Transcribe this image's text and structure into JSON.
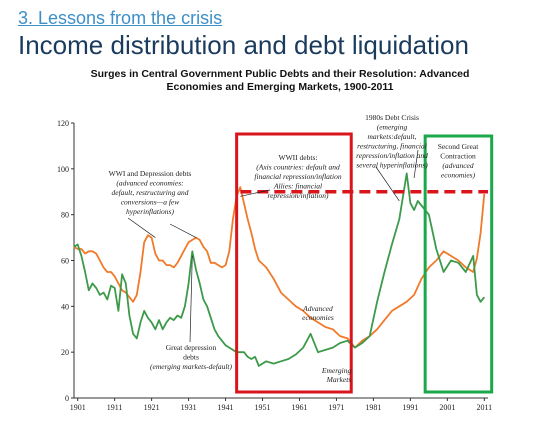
{
  "slide": {
    "section_link": "3. Lessons from the crisis",
    "headline": "Income distribution and debt liquidation"
  },
  "colors": {
    "advanced": "#f07a2a",
    "emerging": "#3c9a4a",
    "highlight_red": "#d9141b",
    "highlight_green": "#1aa84a",
    "section_link": "#3c8fc8",
    "headline": "#1b3b5e"
  },
  "chart_data": {
    "type": "line",
    "title": "Surges in Central Government Public Debts and their Resolution: Advanced Economies and Emerging Markets, 1900-2011",
    "title_line1": "Surges in Central Government Public Debts and their Resolution: Advanced",
    "title_line2": "Economies and Emerging Markets, 1900-2011",
    "xlabel": "",
    "ylabel": "",
    "xlim": [
      1900,
      2012
    ],
    "ylim": [
      0,
      120
    ],
    "x_ticks": [
      1901,
      1911,
      1921,
      1931,
      1941,
      1951,
      1961,
      1971,
      1981,
      1991,
      2001,
      2011
    ],
    "y_ticks": [
      0,
      20,
      40,
      60,
      80,
      100,
      120
    ],
    "grid": false,
    "legend": "none",
    "series": [
      {
        "name": "Advanced economies",
        "label_lines": [
          "Advanced",
          "economies"
        ],
        "color": "#f07a2a",
        "x": [
          1900,
          1901,
          1902,
          1903,
          1904,
          1905,
          1906,
          1907,
          1908,
          1909,
          1910,
          1911,
          1912,
          1913,
          1914,
          1915,
          1916,
          1917,
          1918,
          1919,
          1920,
          1921,
          1922,
          1923,
          1924,
          1925,
          1926,
          1927,
          1928,
          1929,
          1930,
          1931,
          1932,
          1933,
          1934,
          1935,
          1936,
          1937,
          1938,
          1939,
          1940,
          1941,
          1942,
          1943,
          1944,
          1945,
          1946,
          1947,
          1948,
          1949,
          1950,
          1952,
          1954,
          1956,
          1958,
          1960,
          1962,
          1964,
          1966,
          1968,
          1970,
          1972,
          1974,
          1976,
          1978,
          1980,
          1982,
          1984,
          1986,
          1988,
          1990,
          1992,
          1994,
          1996,
          1998,
          2000,
          2002,
          2004,
          2006,
          2008,
          2009,
          2010,
          2011
        ],
        "y": [
          66,
          65,
          65,
          63,
          64,
          64,
          63,
          60,
          57,
          55,
          55,
          53,
          50,
          47,
          46,
          44,
          42,
          45,
          55,
          68,
          71,
          70,
          63,
          60,
          60,
          58,
          58,
          57,
          59,
          62,
          65,
          68,
          69,
          70,
          69,
          66,
          64,
          59,
          59,
          58,
          57,
          58,
          64,
          78,
          88,
          92,
          85,
          78,
          72,
          65,
          60,
          57,
          52,
          46,
          43,
          40,
          38,
          35,
          33,
          31,
          30,
          27,
          26,
          22,
          25,
          27,
          30,
          34,
          38,
          40,
          42,
          45,
          52,
          57,
          60,
          64,
          62,
          60,
          57,
          55,
          61,
          72,
          89
        ]
      },
      {
        "name": "Emerging Markets",
        "label_lines": [
          "Emerging",
          "Markets"
        ],
        "color": "#3c9a4a",
        "x": [
          1900,
          1901,
          1902,
          1903,
          1904,
          1905,
          1906,
          1907,
          1908,
          1909,
          1910,
          1911,
          1912,
          1913,
          1914,
          1915,
          1916,
          1917,
          1918,
          1919,
          1920,
          1921,
          1922,
          1923,
          1924,
          1925,
          1926,
          1927,
          1928,
          1929,
          1930,
          1931,
          1932,
          1933,
          1934,
          1935,
          1936,
          1937,
          1938,
          1939,
          1940,
          1941,
          1942,
          1943,
          1944,
          1945,
          1946,
          1947,
          1948,
          1949,
          1950,
          1952,
          1954,
          1956,
          1958,
          1960,
          1962,
          1964,
          1966,
          1968,
          1970,
          1972,
          1974,
          1976,
          1978,
          1980,
          1982,
          1984,
          1986,
          1988,
          1989,
          1990,
          1991,
          1992,
          1993,
          1994,
          1996,
          1998,
          2000,
          2002,
          2004,
          2006,
          2008,
          2009,
          2010,
          2011
        ],
        "y": [
          66,
          67,
          62,
          55,
          47,
          50,
          48,
          45,
          46,
          43,
          49,
          48,
          38,
          54,
          50,
          36,
          28,
          26,
          33,
          38,
          35,
          33,
          30,
          34,
          30,
          33,
          35,
          34,
          36,
          35,
          40,
          50,
          64,
          56,
          50,
          43,
          40,
          35,
          30,
          27,
          25,
          23,
          22,
          21,
          20,
          20,
          20,
          18,
          17,
          18,
          14,
          16,
          15,
          16,
          17,
          19,
          22,
          28,
          20,
          21,
          22,
          24,
          25,
          22,
          24,
          27,
          42,
          55,
          67,
          78,
          88,
          98,
          85,
          82,
          86,
          84,
          80,
          65,
          55,
          60,
          59,
          55,
          62,
          45,
          42,
          44
        ]
      }
    ],
    "annotations": [
      {
        "id": "wwi",
        "lines": [
          "WWI and Depression debts"
        ],
        "italic_lines": [
          "(advanced economies:",
          "default, restructuring and",
          "conversions—a few",
          "hyperinflations)"
        ]
      },
      {
        "id": "wwii",
        "lines": [
          "WWII debts:"
        ],
        "italic_lines": [
          "(Axis countries: default and",
          "financial repression/inflation",
          "Allies: financial",
          "repression/inflation)"
        ]
      },
      {
        "id": "crisis1980",
        "lines": [
          "1980s Debt Crisis"
        ],
        "italic_lines": [
          "(emerging",
          "markets:default,",
          "restructuring, financial",
          "repression/inflation and",
          "several hyperinflations)"
        ]
      },
      {
        "id": "second",
        "lines": [
          "Second Great",
          "Contraction"
        ],
        "italic_lines": [
          "(advanced",
          "economies)"
        ]
      },
      {
        "id": "depression",
        "lines": [
          "Great depression",
          "debts"
        ],
        "italic_lines": [
          "(emerging markets-default)"
        ]
      }
    ]
  }
}
